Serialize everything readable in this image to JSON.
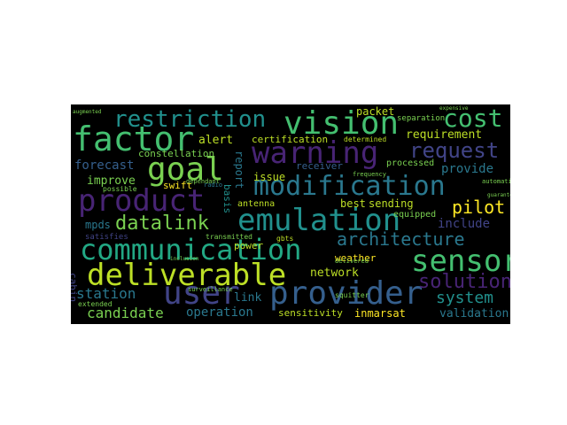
{
  "words": {
    "restriction": "restriction",
    "vision": "vision",
    "cost": "cost",
    "factor": "factor",
    "warning": "warning",
    "request": "request",
    "requirement": "requirement",
    "goal": "goal",
    "alert": "alert",
    "certification": "certification",
    "determined": "determined",
    "separation": "separation",
    "packet": "packet",
    "constellation": "constellation",
    "forecast": "forecast",
    "processed": "processed",
    "provide": "provide",
    "improve": "improve",
    "modification": "modification",
    "swift": "swift",
    "issue": "issue",
    "receiver": "receiver",
    "product": "product",
    "pilot": "pilot",
    "datalink": "datalink",
    "emulation": "emulation",
    "antenna": "antenna",
    "best": "best",
    "sending": "sending",
    "equipped": "equipped",
    "include": "include",
    "mpds": "mpds",
    "architecture": "architecture",
    "communication": "communication",
    "power": "power",
    "sensor": "sensor",
    "weather": "weather",
    "deliverable": "deliverable",
    "network": "network",
    "solution": "solution",
    "user": "user",
    "provider": "provider",
    "link": "link",
    "system": "system",
    "station": "station",
    "candidate": "candidate",
    "operation": "operation",
    "sensitivity": "sensitivity",
    "inmarsat": "inmarsat",
    "validation": "validation",
    "extended": "extended",
    "cabin": "cabin",
    "report": "report",
    "basis": "basis",
    "possible": "possible",
    "satisfies": "satisfies",
    "transmitted": "transmitted",
    "gbts": "gbts",
    "inclusion": "inclusion",
    "surveillance": "surveillance",
    "squitter": "squitter",
    "delivered": "delivered",
    "automatic": "automatic",
    "guaranteed": "guaranteed",
    "dependant": "dependant",
    "radio": "radio",
    "frequency": "frequency",
    "expensive": "expensive",
    "augmented": "augmented"
  },
  "colors": {
    "background": "#000000",
    "purple": "#482475",
    "indigo": "#414487",
    "blue": "#355f8d",
    "steel": "#2a788e",
    "teal": "#21908d",
    "green": "#22a884",
    "lightgreen": "#44bf70",
    "lime": "#7ad151",
    "yellowgreen": "#bddf26",
    "yellow": "#fde725"
  }
}
